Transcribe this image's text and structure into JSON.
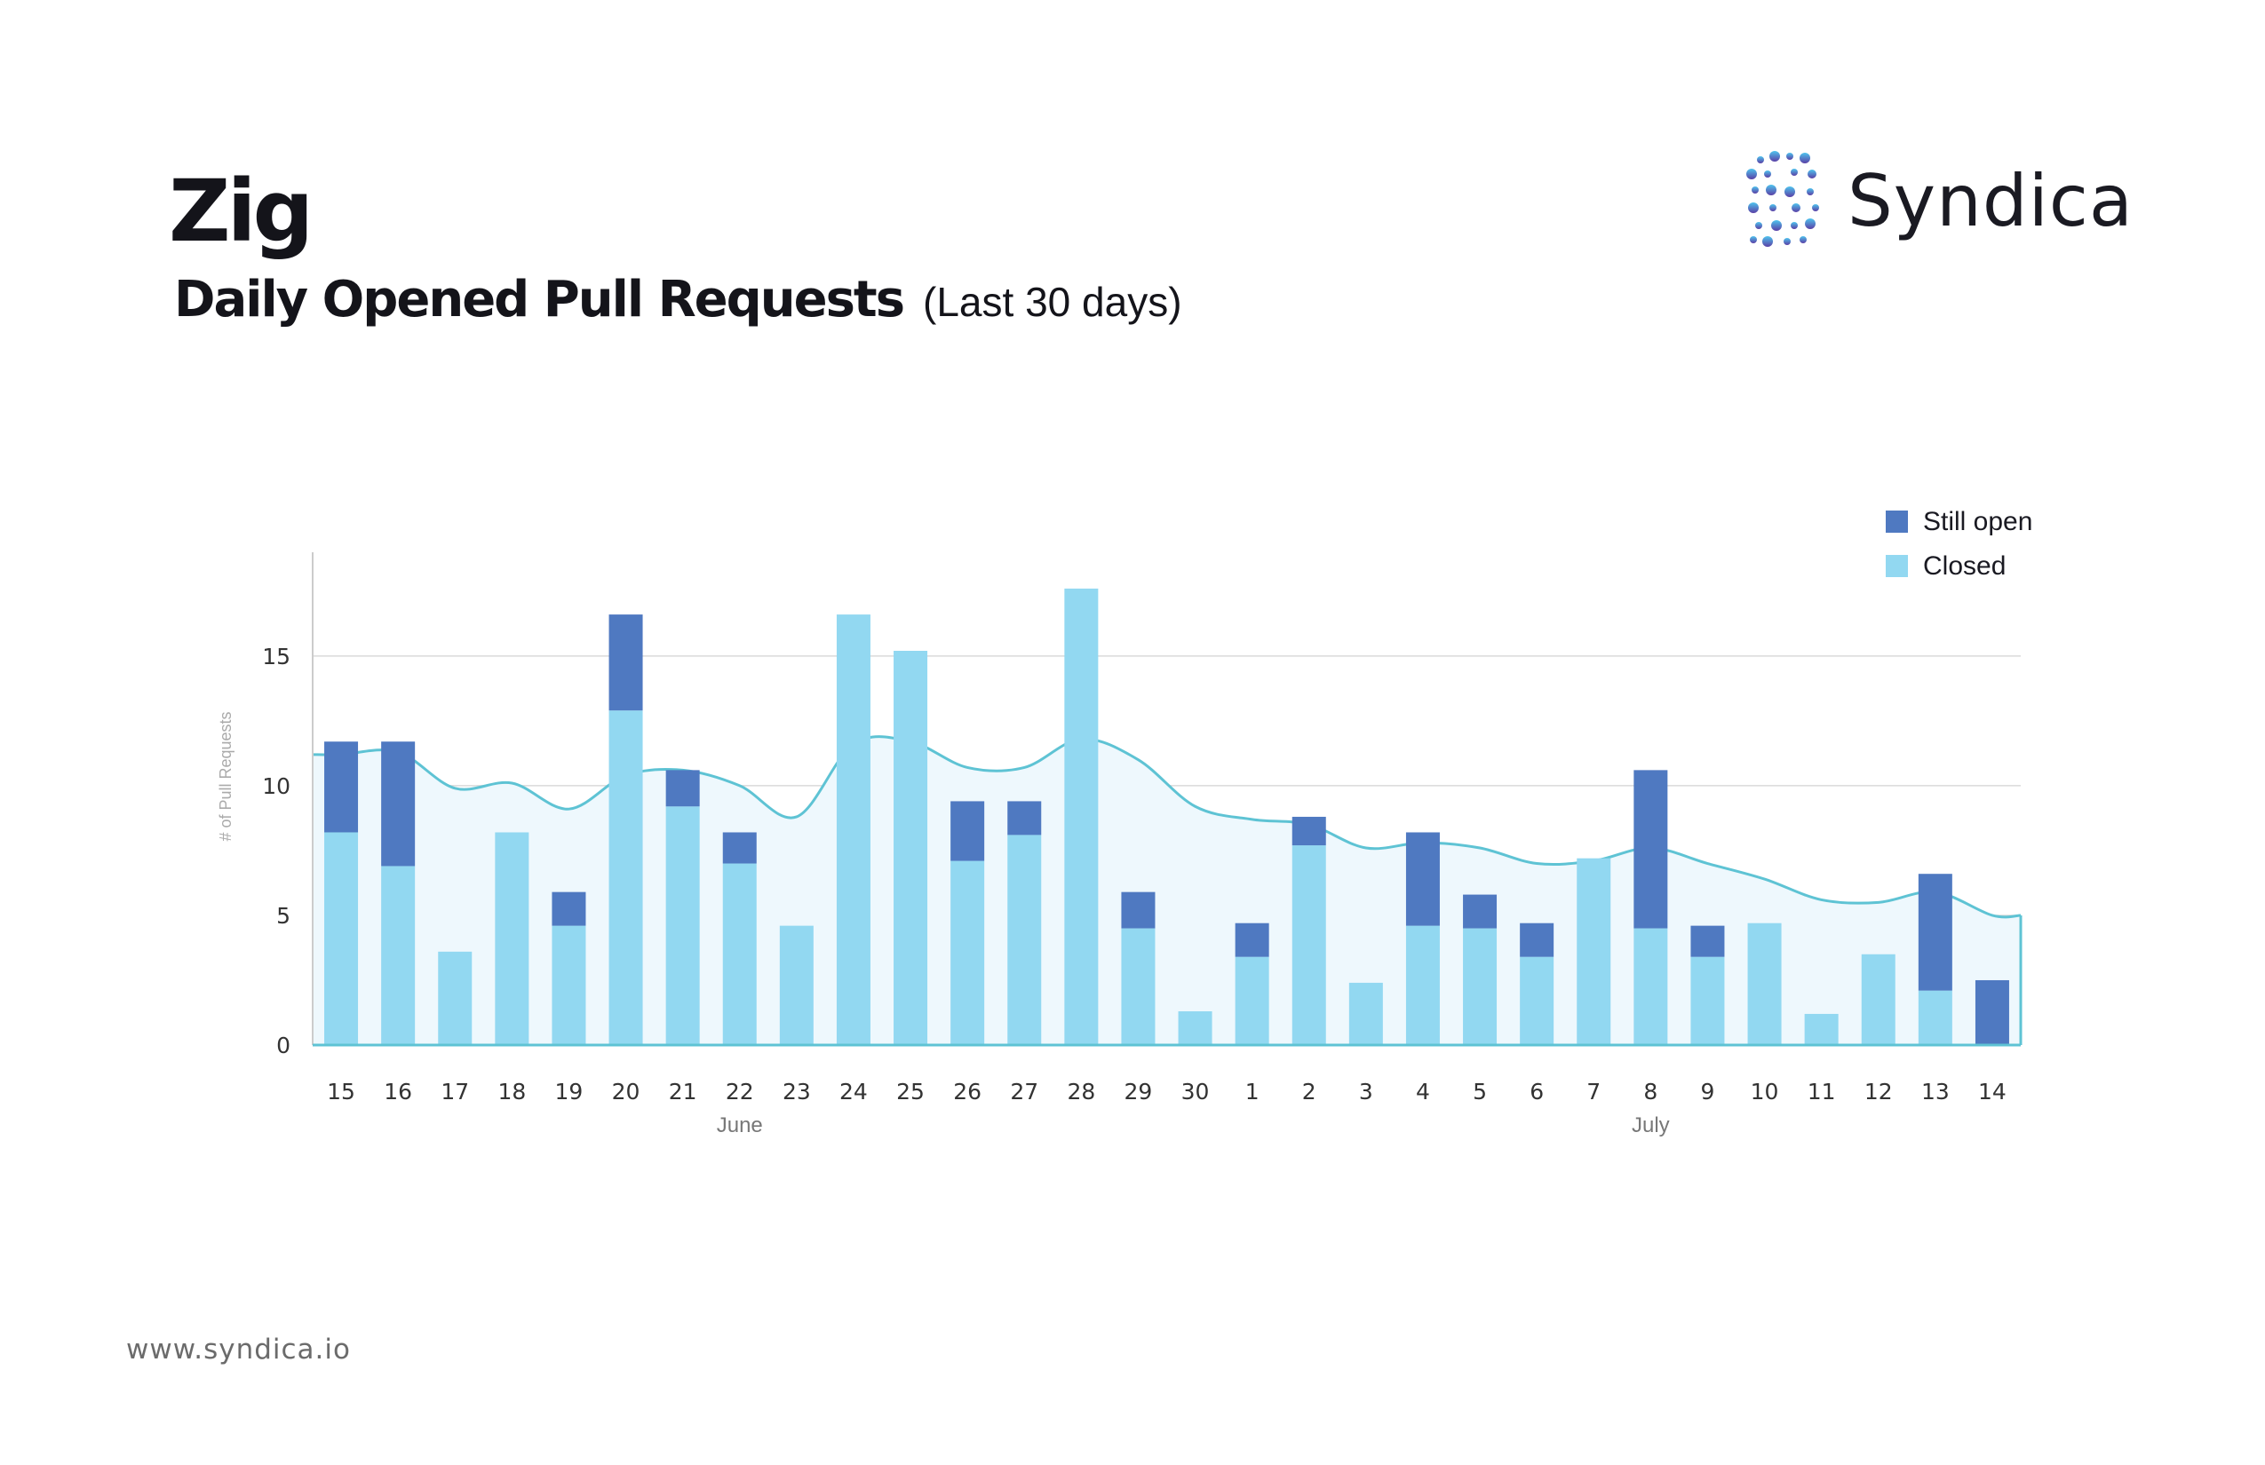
{
  "header": {
    "title": "Zig",
    "subtitle": "Daily Opened Pull Requests",
    "subtitle_note": "(Last 30 days)"
  },
  "brand": {
    "name": "Syndica",
    "logo_icon": "syndica-s-dots-logo"
  },
  "footer": {
    "url": "www.syndica.io"
  },
  "colors": {
    "still_open": "#4f79c1",
    "closed": "#92d8f1",
    "trend_line": "#5ec3d4",
    "trend_fill": "#eef8fd",
    "grid": "#d9d9d9",
    "axis": "#cccccc"
  },
  "chart_data": {
    "type": "bar",
    "stacked": true,
    "categories": [
      "15",
      "16",
      "17",
      "18",
      "19",
      "20",
      "21",
      "22",
      "23",
      "24",
      "25",
      "26",
      "27",
      "28",
      "29",
      "30",
      "1",
      "2",
      "3",
      "4",
      "5",
      "6",
      "7",
      "8",
      "9",
      "10",
      "11",
      "12",
      "13",
      "14"
    ],
    "month_labels": [
      {
        "label": "June",
        "at_category": "22"
      },
      {
        "label": "July",
        "at_category": "8"
      }
    ],
    "series": [
      {
        "name": "Closed",
        "values": [
          8.2,
          6.9,
          3.6,
          8.2,
          4.6,
          12.9,
          9.2,
          7.0,
          4.6,
          16.6,
          15.2,
          7.1,
          8.1,
          17.6,
          4.5,
          1.3,
          3.4,
          7.7,
          2.4,
          4.6,
          4.5,
          3.4,
          7.2,
          4.5,
          3.4,
          4.7,
          1.2,
          3.5,
          2.1,
          0
        ]
      },
      {
        "name": "Still open",
        "values": [
          3.5,
          4.8,
          0,
          0,
          1.3,
          3.7,
          1.4,
          1.2,
          0,
          0,
          0,
          2.3,
          1.3,
          0,
          1.4,
          0,
          1.3,
          1.1,
          0,
          3.6,
          1.3,
          1.3,
          0,
          6.1,
          1.2,
          0,
          0,
          0,
          4.5,
          2.5
        ]
      }
    ],
    "trend": [
      11.2,
      11.3,
      9.9,
      10.1,
      9.1,
      10.4,
      10.6,
      10.0,
      8.8,
      11.6,
      11.7,
      10.7,
      10.7,
      11.8,
      11.0,
      9.2,
      8.7,
      8.5,
      7.6,
      7.8,
      7.6,
      7.0,
      7.1,
      7.6,
      7.0,
      6.4,
      5.6,
      5.5,
      5.9,
      5.0
    ],
    "ylabel": "# of Pull Requests",
    "ylim": [
      0,
      19
    ],
    "yticks": [
      0,
      5,
      10,
      15
    ],
    "grid": true,
    "legend": [
      "Still open",
      "Closed"
    ],
    "legend_position": "top-right"
  }
}
